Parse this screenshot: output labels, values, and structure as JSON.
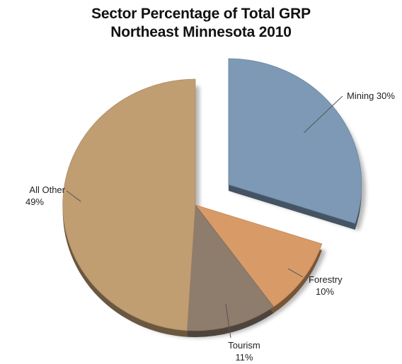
{
  "chart_data": {
    "type": "pie",
    "title": "Sector Percentage of Total GRP",
    "subtitle": "Northeast Minnesota 2010",
    "slices": [
      {
        "label": "Mining",
        "value": 30,
        "value_label": "30%",
        "color": "#7d99b5",
        "exploded": true
      },
      {
        "label": "Forestry",
        "value": 10,
        "value_label": "10%",
        "color": "#d89a66",
        "exploded": false
      },
      {
        "label": "Tourism",
        "value": 11,
        "value_label": "11%",
        "color": "#8e7c6c",
        "exploded": false
      },
      {
        "label": "All Other",
        "value": 49,
        "value_label": "49%",
        "color": "#c19e72",
        "exploded": false
      }
    ],
    "legend": "none",
    "style": "3d-pie-with-shadow"
  }
}
